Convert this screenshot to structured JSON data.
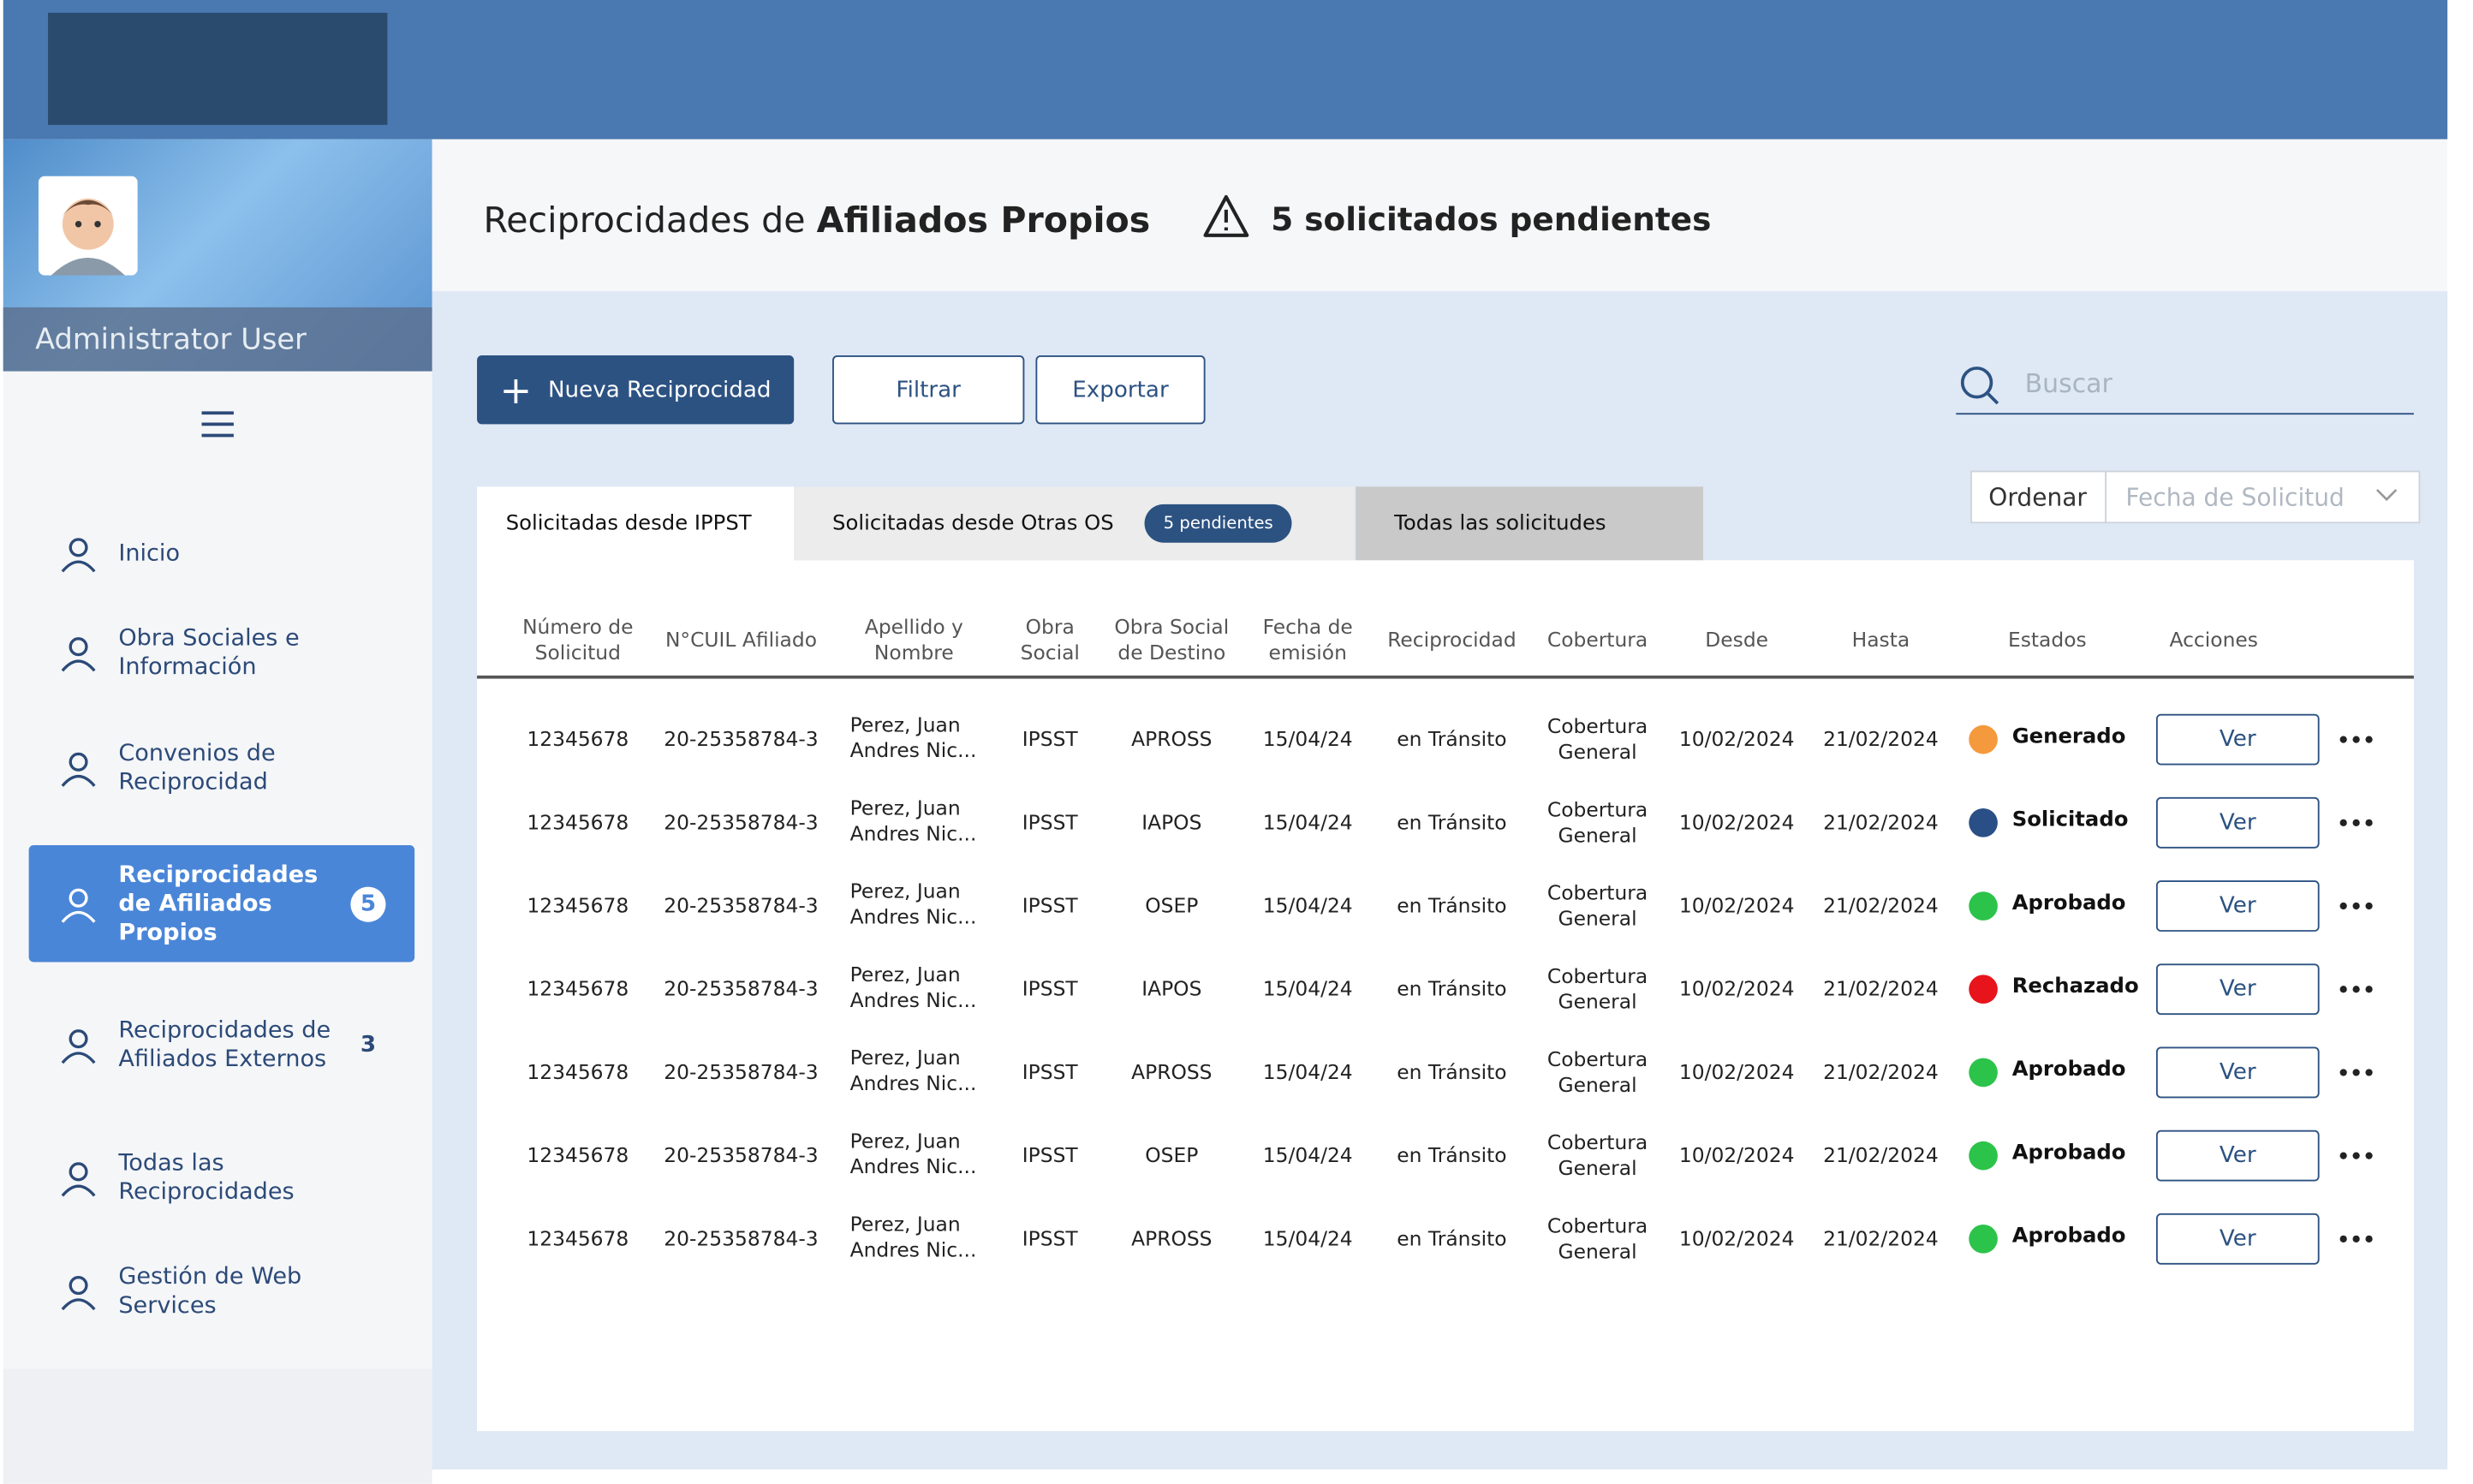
{
  "header": {},
  "sidebar": {
    "user_name": "Administrator User",
    "menu": [
      {
        "label": "Inicio"
      },
      {
        "label": "Obra Sociales e Información"
      },
      {
        "label": "Convenios de Reciprocidad"
      },
      {
        "label": "Reciprocidades de Afiliados Propios",
        "badge": 5,
        "active": true
      },
      {
        "label": "Reciprocidades de Afiliados Externos",
        "badge": 3
      },
      {
        "label": "Todas las Reciprocidades"
      },
      {
        "label": "Gestión de Web Services"
      }
    ]
  },
  "page": {
    "title_prefix": "Reciprocidades de",
    "title_bold": "Afiliados Propios",
    "warning": "5 solicitados pendientes"
  },
  "toolbar": {
    "new_button": "Nueva Reciprocidad",
    "filter_button": "Filtrar",
    "export_button": "Exportar",
    "search_placeholder": "Buscar"
  },
  "tabs": [
    {
      "label": "Solicitadas desde IPPST"
    },
    {
      "label": "Solicitadas desde Otras OS",
      "badge": "5 pendientes"
    },
    {
      "label": "Todas las solicitudes"
    }
  ],
  "sort": {
    "label": "Ordenar",
    "placeholder": "Fecha de Solicitud"
  },
  "table": {
    "columns": [
      "Número de Solicitud",
      "N°CUIL Afiliado",
      "Apellido y Nombre",
      "Obra Social",
      "Obra Social de Destino",
      "Fecha de emisión",
      "Reciprocidad",
      "Cobertura",
      "Desde",
      "Hasta",
      "Estados",
      "Acciones"
    ],
    "action_label": "Ver",
    "rows": [
      [
        "12345678",
        "20-25358784-3",
        "Perez, Juan Andres Nic...",
        "IPSST",
        "APROSS",
        "15/04/24",
        "en Tránsito",
        "Cobertura General",
        "10/02/2024",
        "21/02/2024",
        {
          "label": "Generado",
          "color": "#f59a3c"
        }
      ],
      [
        "12345678",
        "20-25358784-3",
        "Perez, Juan Andres Nic...",
        "IPSST",
        "IAPOS",
        "15/04/24",
        "en Tránsito",
        "Cobertura General",
        "10/02/2024",
        "21/02/2024",
        {
          "label": "Solicitado",
          "color": "#2a4f86"
        }
      ],
      [
        "12345678",
        "20-25358784-3",
        "Perez, Juan Andres Nic...",
        "IPSST",
        "OSEP",
        "15/04/24",
        "en Tránsito",
        "Cobertura General",
        "10/02/2024",
        "21/02/2024",
        {
          "label": "Aprobado",
          "color": "#2cc34a"
        }
      ],
      [
        "12345678",
        "20-25358784-3",
        "Perez, Juan Andres Nic...",
        "IPSST",
        "IAPOS",
        "15/04/24",
        "en Tránsito",
        "Cobertura General",
        "10/02/2024",
        "21/02/2024",
        {
          "label": "Rechazado",
          "color": "#e8141c"
        }
      ],
      [
        "12345678",
        "20-25358784-3",
        "Perez, Juan Andres Nic...",
        "IPSST",
        "APROSS",
        "15/04/24",
        "en Tránsito",
        "Cobertura General",
        "10/02/2024",
        "21/02/2024",
        {
          "label": "Aprobado",
          "color": "#2cc34a"
        }
      ],
      [
        "12345678",
        "20-25358784-3",
        "Perez, Juan Andres Nic...",
        "IPSST",
        "OSEP",
        "15/04/24",
        "en Tránsito",
        "Cobertura General",
        "10/02/2024",
        "21/02/2024",
        {
          "label": "Aprobado",
          "color": "#2cc34a"
        }
      ],
      [
        "12345678",
        "20-25358784-3",
        "Perez, Juan Andres Nic...",
        "IPSST",
        "APROSS",
        "15/04/24",
        "en Tránsito",
        "Cobertura General",
        "10/02/2024",
        "21/02/2024",
        {
          "label": "Aprobado",
          "color": "#2cc34a"
        }
      ]
    ]
  }
}
